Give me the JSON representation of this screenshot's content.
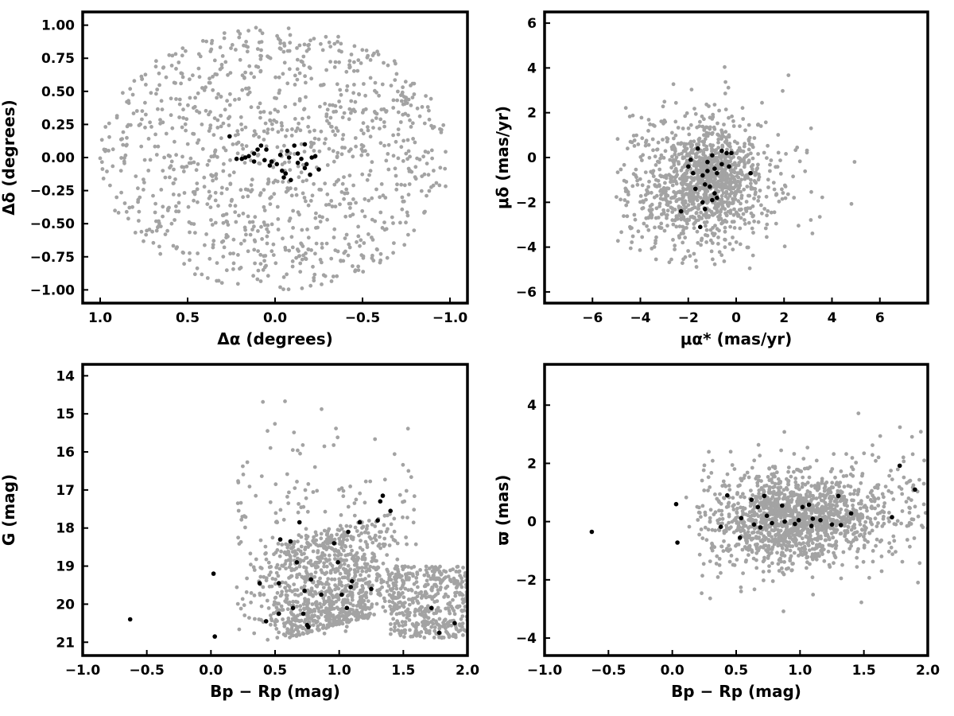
{
  "colors": {
    "field": "#a3a3a3",
    "member": "#000000",
    "frame": "#000000"
  },
  "chart_data": [
    {
      "id": "sky",
      "type": "scatter",
      "title": "",
      "xlabel": "Δα (degrees)",
      "ylabel": "Δδ (degrees)",
      "xlim": [
        1.1,
        -1.1
      ],
      "ylim": [
        -1.1,
        1.1
      ],
      "x_reversed": true,
      "xticks": [
        1.0,
        0.5,
        0.0,
        -0.5,
        -1.0
      ],
      "xtick_labels": [
        "1.0",
        "0.5",
        "0.0",
        "−0.5",
        "−1.0"
      ],
      "yticks": [
        -1.0,
        -0.75,
        -0.5,
        -0.25,
        0.0,
        0.25,
        0.5,
        0.75,
        1.0
      ],
      "ytick_labels": [
        "−1.00",
        "−0.75",
        "−0.50",
        "−0.25",
        "0.00",
        "0.25",
        "0.50",
        "0.75",
        "1.00"
      ],
      "field_pattern": {
        "shape": "disk",
        "cx": 0.0,
        "cy": 0.0,
        "r": 1.0,
        "count": 1100
      },
      "members": [
        [
          0.26,
          0.16
        ],
        [
          0.19,
          -0.01
        ],
        [
          0.12,
          0.03
        ],
        [
          0.1,
          0.06
        ],
        [
          0.05,
          0.06
        ],
        [
          0.02,
          -0.03
        ],
        [
          -0.01,
          -0.05
        ],
        [
          -0.04,
          -0.1
        ],
        [
          -0.05,
          -0.15
        ],
        [
          -0.07,
          0.05
        ],
        [
          -0.09,
          -0.17
        ],
        [
          -0.11,
          0.09
        ],
        [
          -0.13,
          0.03
        ],
        [
          -0.15,
          -0.01
        ],
        [
          -0.17,
          -0.08
        ],
        [
          -0.21,
          0.0
        ],
        [
          -0.23,
          0.01
        ],
        [
          -0.25,
          -0.09
        ],
        [
          -0.2,
          -0.13
        ],
        [
          0.08,
          0.09
        ],
        [
          0.15,
          0.01
        ],
        [
          -0.03,
          0.02
        ],
        [
          0.03,
          -0.06
        ],
        [
          0.17,
          0.0
        ],
        [
          -0.13,
          -0.04
        ],
        [
          0.06,
          -0.02
        ],
        [
          -0.06,
          -0.12
        ],
        [
          0.12,
          -0.03
        ],
        [
          -0.17,
          0.1
        ],
        [
          -0.18,
          -0.05
        ],
        [
          0.22,
          -0.01
        ],
        [
          -0.08,
          0.0
        ]
      ]
    },
    {
      "id": "proper-motion",
      "type": "scatter",
      "title": "",
      "xlabel": "μα* (mas/yr)",
      "ylabel": "μδ (mas/yr)",
      "xlim": [
        -8,
        8
      ],
      "ylim": [
        -6.5,
        6.5
      ],
      "x_reversed": false,
      "xticks": [
        -6,
        -4,
        -2,
        0,
        2,
        4,
        6
      ],
      "xtick_labels": [
        "−6",
        "−4",
        "−2",
        "0",
        "2",
        "4",
        "6"
      ],
      "yticks": [
        -6,
        -4,
        -2,
        0,
        2,
        4,
        6
      ],
      "ytick_labels": [
        "−6",
        "−4",
        "−2",
        "0",
        "2",
        "4",
        "6"
      ],
      "field_pattern": {
        "shape": "cloud",
        "cx": -1.5,
        "cy": -1.2,
        "sx": 1.7,
        "sy": 1.6,
        "count": 1300,
        "clip": [
          -5,
          5,
          -5,
          5
        ]
      },
      "members": [
        [
          -1.6,
          0.4
        ],
        [
          -1.2,
          -0.2
        ],
        [
          -1.0,
          0.1
        ],
        [
          -0.9,
          -0.5
        ],
        [
          -0.8,
          -0.7
        ],
        [
          -0.6,
          -0.3
        ],
        [
          -1.9,
          -0.1
        ],
        [
          -2.0,
          -0.4
        ],
        [
          -1.4,
          -0.8
        ],
        [
          -1.3,
          -1.2
        ],
        [
          -1.1,
          -1.3
        ],
        [
          -0.9,
          -1.6
        ],
        [
          -0.8,
          -1.8
        ],
        [
          -2.3,
          -2.4
        ],
        [
          -1.5,
          -3.1
        ],
        [
          -1.4,
          -2.0
        ],
        [
          -1.3,
          -2.3
        ],
        [
          -0.4,
          0.2
        ],
        [
          -0.3,
          -0.4
        ],
        [
          0.6,
          -0.7
        ],
        [
          -0.2,
          0.2
        ],
        [
          -1.0,
          -1.9
        ],
        [
          -1.7,
          -1.4
        ],
        [
          -1.2,
          -0.6
        ],
        [
          -0.6,
          0.3
        ],
        [
          -1.8,
          -0.7
        ]
      ]
    },
    {
      "id": "cmd",
      "type": "scatter",
      "title": "",
      "xlabel": "Bp − Rp (mag)",
      "ylabel": "G (mag)",
      "xlim": [
        -1.0,
        2.0
      ],
      "ylim": [
        21.35,
        13.7
      ],
      "y_reversed": true,
      "xticks": [
        -1.0,
        -0.5,
        0.0,
        0.5,
        1.0,
        1.5,
        2.0
      ],
      "xtick_labels": [
        "−1.0",
        "−0.5",
        "0.0",
        "0.5",
        "1.0",
        "1.5",
        "2.0"
      ],
      "yticks": [
        14,
        15,
        16,
        17,
        18,
        19,
        20,
        21
      ],
      "ytick_labels": [
        "14",
        "15",
        "16",
        "17",
        "18",
        "19",
        "20",
        "21"
      ],
      "field_pattern": {
        "shape": "cmd",
        "count": 1500
      },
      "members": [
        [
          -0.63,
          20.4
        ],
        [
          0.03,
          20.85
        ],
        [
          0.02,
          19.2
        ],
        [
          0.38,
          19.45
        ],
        [
          0.43,
          20.45
        ],
        [
          0.53,
          20.25
        ],
        [
          0.53,
          19.45
        ],
        [
          0.54,
          18.3
        ],
        [
          0.62,
          18.35
        ],
        [
          0.64,
          20.1
        ],
        [
          0.67,
          18.9
        ],
        [
          0.69,
          17.85
        ],
        [
          0.72,
          20.25
        ],
        [
          0.73,
          19.65
        ],
        [
          0.75,
          20.55
        ],
        [
          0.76,
          20.6
        ],
        [
          0.78,
          19.35
        ],
        [
          0.86,
          19.75
        ],
        [
          0.96,
          18.4
        ],
        [
          0.99,
          18.9
        ],
        [
          1.02,
          19.75
        ],
        [
          1.06,
          20.1
        ],
        [
          1.07,
          18.1
        ],
        [
          1.09,
          19.55
        ],
        [
          1.1,
          19.4
        ],
        [
          1.16,
          17.85
        ],
        [
          1.25,
          19.6
        ],
        [
          1.3,
          17.8
        ],
        [
          1.32,
          17.3
        ],
        [
          1.34,
          17.15
        ],
        [
          1.4,
          17.55
        ],
        [
          1.72,
          20.1
        ],
        [
          1.78,
          20.75
        ],
        [
          1.9,
          20.5
        ]
      ]
    },
    {
      "id": "parallax",
      "type": "scatter",
      "title": "",
      "xlabel": "Bp − Rp (mag)",
      "ylabel": "ϖ (mas)",
      "xlim": [
        -1.0,
        2.0
      ],
      "ylim": [
        -4.6,
        5.4
      ],
      "x_reversed": false,
      "xticks": [
        -1.0,
        -0.5,
        0.0,
        0.5,
        1.0,
        1.5,
        2.0
      ],
      "xtick_labels": [
        "−1.0",
        "−0.5",
        "0.0",
        "0.5",
        "1.0",
        "1.5",
        "2.0"
      ],
      "yticks": [
        -4,
        -2,
        0,
        2,
        4
      ],
      "ytick_labels": [
        "−4",
        "−2",
        "0",
        "2",
        "4"
      ],
      "field_pattern": {
        "shape": "band",
        "cx": 0.95,
        "cy": 0.1,
        "sx": 0.32,
        "sy": 0.75,
        "count": 1500
      },
      "members": [
        [
          -0.63,
          -0.35
        ],
        [
          0.03,
          0.6
        ],
        [
          0.04,
          -0.72
        ],
        [
          0.38,
          -0.18
        ],
        [
          0.43,
          0.9
        ],
        [
          0.53,
          -0.55
        ],
        [
          0.54,
          0.12
        ],
        [
          0.62,
          0.75
        ],
        [
          0.64,
          -0.1
        ],
        [
          0.67,
          0.5
        ],
        [
          0.72,
          0.88
        ],
        [
          0.74,
          0.2
        ],
        [
          0.78,
          -0.05
        ],
        [
          0.86,
          0.55
        ],
        [
          0.96,
          -0.08
        ],
        [
          1.02,
          0.5
        ],
        [
          1.07,
          0.58
        ],
        [
          1.09,
          -0.15
        ],
        [
          1.1,
          0.1
        ],
        [
          1.16,
          0.05
        ],
        [
          1.25,
          -0.1
        ],
        [
          1.3,
          0.88
        ],
        [
          1.32,
          -0.12
        ],
        [
          1.4,
          0.28
        ],
        [
          1.72,
          0.15
        ],
        [
          1.78,
          1.92
        ],
        [
          1.9,
          1.1
        ],
        [
          0.88,
          0.0
        ],
        [
          0.99,
          0.05
        ],
        [
          0.69,
          -0.2
        ]
      ]
    }
  ]
}
